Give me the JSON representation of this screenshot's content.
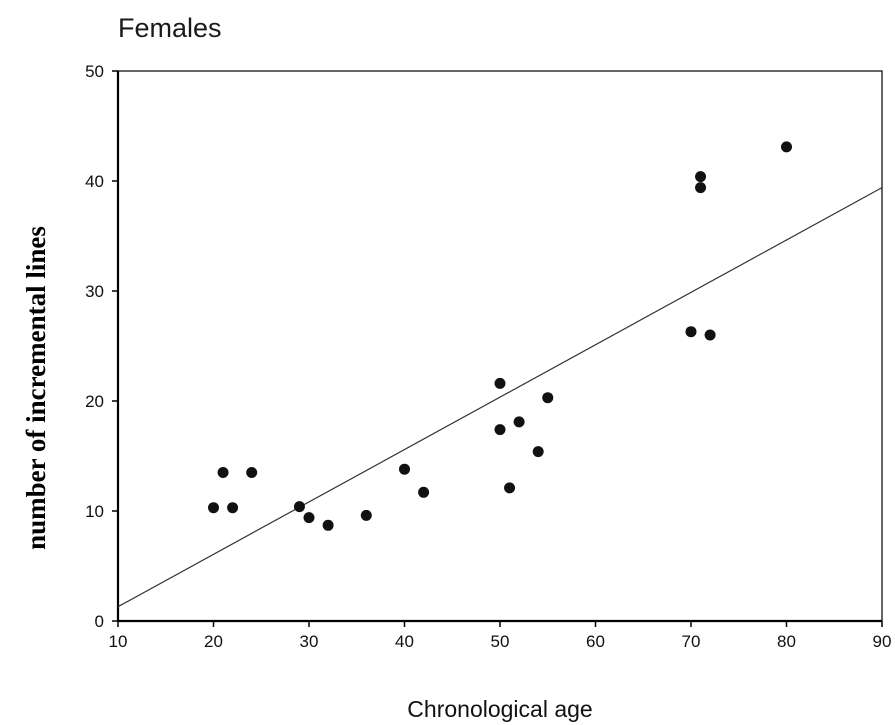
{
  "chart_data": {
    "type": "scatter",
    "title": "Females",
    "xlabel": "Chronological age",
    "ylabel": "number of incremental lines",
    "xlim": [
      10,
      90
    ],
    "ylim": [
      0,
      50
    ],
    "xticks": [
      10,
      20,
      30,
      40,
      50,
      60,
      70,
      80,
      90
    ],
    "yticks": [
      0,
      10,
      20,
      30,
      40,
      50
    ],
    "grid": false,
    "points": [
      {
        "x": 20,
        "y": 10.3
      },
      {
        "x": 21,
        "y": 13.5
      },
      {
        "x": 22,
        "y": 10.3
      },
      {
        "x": 24,
        "y": 13.5
      },
      {
        "x": 29,
        "y": 10.4
      },
      {
        "x": 30,
        "y": 9.4
      },
      {
        "x": 32,
        "y": 8.7
      },
      {
        "x": 36,
        "y": 9.6
      },
      {
        "x": 40,
        "y": 13.8
      },
      {
        "x": 42,
        "y": 11.7
      },
      {
        "x": 50,
        "y": 21.6
      },
      {
        "x": 50,
        "y": 17.4
      },
      {
        "x": 51,
        "y": 12.1
      },
      {
        "x": 52,
        "y": 18.1
      },
      {
        "x": 54,
        "y": 15.4
      },
      {
        "x": 55,
        "y": 20.3
      },
      {
        "x": 70,
        "y": 26.3
      },
      {
        "x": 71,
        "y": 40.4
      },
      {
        "x": 71,
        "y": 39.4
      },
      {
        "x": 72,
        "y": 26.0
      },
      {
        "x": 80,
        "y": 43.1
      }
    ],
    "trendline": {
      "x": [
        10,
        90
      ],
      "y": [
        1.3,
        39.4
      ]
    },
    "colors": {
      "points": "#111111",
      "line": "#333333",
      "axis": "#000000"
    }
  }
}
